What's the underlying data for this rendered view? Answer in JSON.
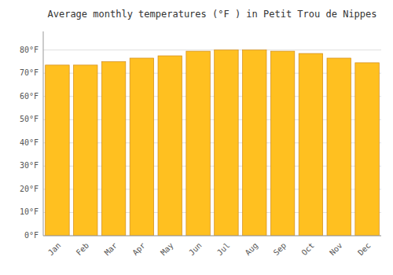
{
  "chart_data": {
    "type": "bar",
    "title": "Average monthly temperatures (°F ) in Petit Trou de Nippes",
    "categories": [
      "Jan",
      "Feb",
      "Mar",
      "Apr",
      "May",
      "Jun",
      "Jul",
      "Aug",
      "Sep",
      "Oct",
      "Nov",
      "Dec"
    ],
    "values": [
      73.5,
      73.5,
      75.0,
      76.5,
      77.5,
      79.5,
      80.0,
      80.0,
      79.5,
      78.5,
      76.5,
      74.5
    ],
    "color": "#FFC020",
    "ylim": [
      0,
      88
    ],
    "yticks": [
      {
        "value": 0,
        "label": "0°F"
      },
      {
        "value": 10,
        "label": "10°F"
      },
      {
        "value": 20,
        "label": "20°F"
      },
      {
        "value": 30,
        "label": "30°F"
      },
      {
        "value": 40,
        "label": "40°F"
      },
      {
        "value": 50,
        "label": "50°F"
      },
      {
        "value": 60,
        "label": "60°F"
      },
      {
        "value": 70,
        "label": "70°F"
      },
      {
        "value": 80,
        "label": "80°F"
      }
    ],
    "grid": true
  }
}
